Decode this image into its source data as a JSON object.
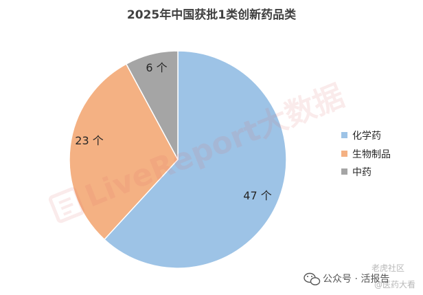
{
  "chart_data": {
    "type": "pie",
    "title": "2025年中国获批1类创新药品类",
    "categories": [
      "化学药",
      "生物制品",
      "中药"
    ],
    "values": [
      47,
      23,
      6
    ],
    "unit": "个",
    "data_labels": [
      "47 个",
      "23 个",
      "6 个"
    ],
    "colors": [
      "#9dc3e6",
      "#f4b183",
      "#a5a5a5"
    ],
    "legend_position": "right",
    "start_angle_deg": 0,
    "direction": "clockwise"
  },
  "watermark": {
    "text": "LiveReport大数据"
  },
  "footer": {
    "account_label": "公众号 · 活报告",
    "faint_top": "老虎社区",
    "faint_bottom": "@医药大看"
  }
}
